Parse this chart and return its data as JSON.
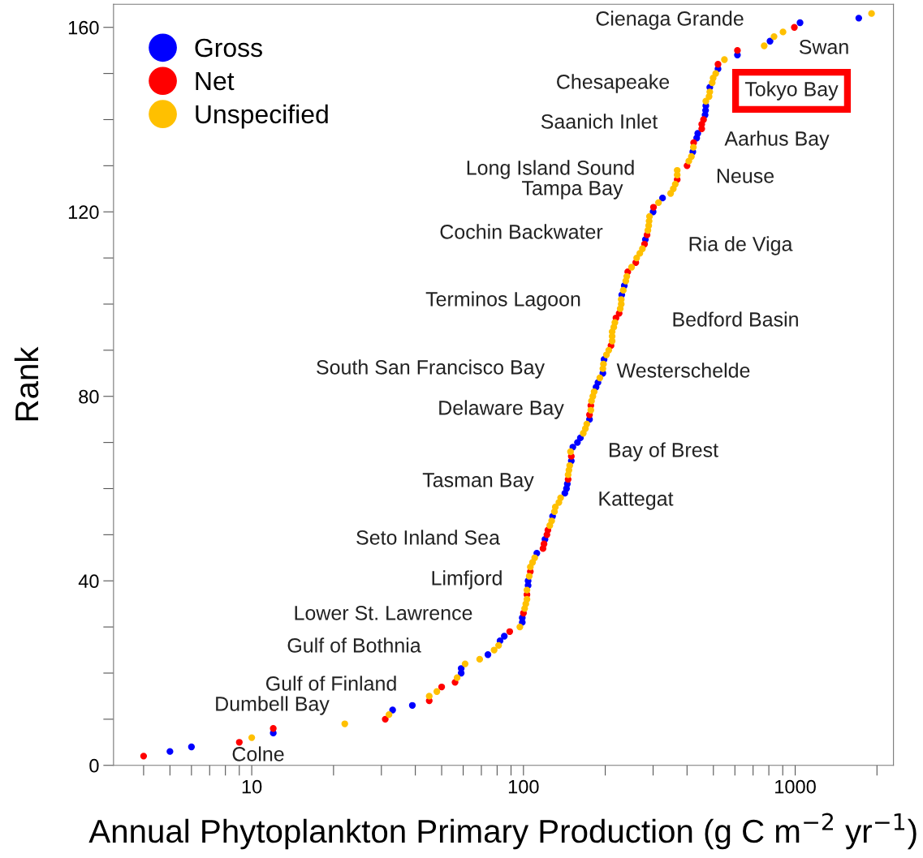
{
  "chart_data": {
    "type": "scatter",
    "xlabel": "Annual Phytoplankton Primary Production (g C m$^{−2}$ yr$^{−1}$)",
    "ylabel": "Rank",
    "log": "x",
    "grid": false,
    "legend": "top left",
    "marker": "circle",
    "xlim": [
      3.1,
      2300
    ],
    "ylim": [
      0,
      165
    ],
    "xticks": [
      {
        "value": 4,
        "label": null
      },
      {
        "value": 5,
        "label": null
      },
      {
        "value": 6,
        "label": null
      },
      {
        "value": 7,
        "label": null
      },
      {
        "value": 8,
        "label": null
      },
      {
        "value": 9,
        "label": null
      },
      10,
      {
        "value": 20,
        "label": null
      },
      {
        "value": 30,
        "label": null
      },
      {
        "value": 40,
        "label": null
      },
      {
        "value": 50,
        "label": null
      },
      {
        "value": 60,
        "label": null
      },
      {
        "value": 70,
        "label": null
      },
      {
        "value": 80,
        "label": null
      },
      {
        "value": 90,
        "label": null
      },
      100,
      {
        "value": 200,
        "label": null
      },
      {
        "value": 300,
        "label": null
      },
      {
        "value": 400,
        "label": null
      },
      {
        "value": 500,
        "label": null
      },
      {
        "value": 600,
        "label": null
      },
      {
        "value": 700,
        "label": null
      },
      {
        "value": 800,
        "label": null
      },
      {
        "value": 900,
        "label": null
      },
      1000,
      {
        "value": 2000,
        "label": null
      }
    ],
    "yticks": [
      0,
      {
        "value": 10,
        "label": null
      },
      {
        "value": 20,
        "label": null
      },
      {
        "value": 30,
        "label": null
      },
      40,
      {
        "value": 50,
        "label": null
      },
      {
        "value": 60,
        "label": null
      },
      {
        "value": 70,
        "label": null
      },
      80,
      {
        "value": 90,
        "label": null
      },
      {
        "value": 100,
        "label": null
      },
      {
        "value": 110,
        "label": null
      },
      120,
      {
        "value": 130,
        "label": null
      },
      {
        "value": 140,
        "label": null
      },
      {
        "value": 150,
        "label": null
      },
      160
    ],
    "series": [
      {
        "name": "Gross",
        "color": "#0000ff",
        "x": [
          5,
          6,
          12,
          33,
          39,
          59,
          59,
          74,
          82,
          85,
          99,
          99,
          104,
          104,
          112,
          120,
          128,
          142,
          144,
          145,
          150,
          152,
          158,
          162,
          175,
          185,
          188,
          196,
          198,
          230,
          235,
          281,
          300,
          325,
          420,
          434,
          438,
          466,
          468,
          469,
          485,
          520,
          613,
          808,
          1042,
          1714
        ],
        "values": [
          3,
          4,
          7,
          12,
          13,
          20,
          21,
          24,
          27,
          28,
          31,
          32,
          39,
          40,
          46,
          49,
          54,
          59,
          60,
          61,
          66,
          69,
          70,
          71,
          75,
          82,
          83,
          85,
          88,
          102,
          104,
          114,
          120,
          123,
          133,
          136,
          137,
          141,
          142,
          143,
          147,
          151,
          154,
          157,
          161,
          162
        ]
      },
      {
        "name": "Net",
        "color": "#ff0000",
        "x": [
          4,
          9,
          12,
          31,
          45,
          50,
          56,
          89,
          100,
          103,
          106,
          118,
          119,
          122,
          123,
          146,
          150,
          175,
          177,
          210,
          219,
          225,
          242,
          259,
          279,
          285,
          301,
          368,
          400,
          423,
          453,
          453,
          460,
          520,
          613,
          993
        ],
        "values": [
          2,
          5,
          8,
          10,
          14,
          17,
          18,
          29,
          33,
          37,
          42,
          47,
          48,
          50,
          51,
          62,
          67,
          76,
          78,
          91,
          97,
          98,
          107,
          109,
          113,
          115,
          121,
          127,
          130,
          135,
          138,
          139,
          140,
          152,
          155,
          160
        ]
      },
      {
        "name": "Unspecified",
        "color": "#ffc000",
        "x": [
          10,
          22,
          32,
          45,
          48,
          57,
          61,
          69,
          78,
          81,
          97,
          101,
          102,
          103,
          103,
          105,
          106,
          108,
          110,
          125,
          127,
          130,
          131,
          135,
          137,
          146,
          147,
          148,
          149,
          166,
          169,
          171,
          177,
          178,
          180,
          182,
          191,
          196,
          197,
          202,
          206,
          212,
          212,
          212,
          215,
          217,
          227,
          229,
          229,
          233,
          238,
          240,
          250,
          261,
          268,
          274,
          287,
          289,
          290,
          291,
          314,
          348,
          356,
          362,
          368,
          368,
          406,
          415,
          422,
          469,
          482,
          485,
          495,
          499,
          510,
          549,
          769,
          836,
          902,
          1910
        ],
        "values": [
          6,
          9,
          11,
          15,
          16,
          19,
          22,
          23,
          25,
          26,
          30,
          34,
          35,
          36,
          38,
          41,
          43,
          44,
          45,
          52,
          53,
          55,
          56,
          57,
          58,
          63,
          64,
          65,
          68,
          72,
          73,
          74,
          77,
          79,
          80,
          81,
          84,
          86,
          87,
          89,
          90,
          92,
          93,
          94,
          95,
          96,
          99,
          100,
          101,
          103,
          105,
          106,
          108,
          110,
          111,
          112,
          116,
          117,
          118,
          119,
          122,
          124,
          125,
          126,
          128,
          129,
          131,
          132,
          134,
          144,
          145,
          146,
          148,
          149,
          150,
          153,
          156,
          158,
          159,
          163
        ]
      }
    ],
    "annotations": [
      "Cienaga Grande",
      "Swan",
      "Chesapeake",
      "Tokyo Bay",
      "Saanich Inlet",
      "Aarhus Bay",
      "Long Island Sound",
      "Tampa Bay",
      "Neuse",
      "Cochin Backwater",
      "Ria de Viga",
      "Terminos Lagoon",
      "Bedford Basin",
      "South San Francisco Bay",
      "Westerschelde",
      "Delaware Bay",
      "Bay of Brest",
      "Tasman Bay",
      "Kattegat",
      "Seto Inland Sea",
      "Limfjord",
      "Lower St. Lawrence",
      "Gulf of Bothnia",
      "Gulf of Finland",
      "Dumbell Bay",
      "Colne"
    ]
  }
}
